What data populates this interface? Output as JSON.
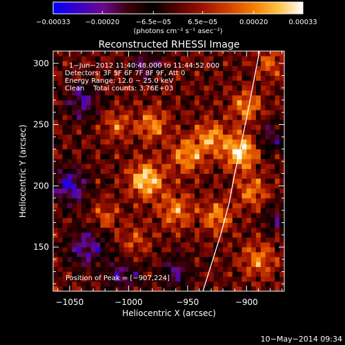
{
  "chart_data": {
    "type": "heatmap",
    "title": "Reconstructed RHESSI Image",
    "xlabel": "Heliocentric X (arcsec)",
    "ylabel": "Heliocentric Y (arcsec)",
    "xlim": [
      -1064,
      -868
    ],
    "ylim": [
      114,
      310
    ],
    "x_ticks": [
      -1050,
      -1000,
      -950,
      -900
    ],
    "x_tick_labels": [
      "−1050",
      "−1000",
      "−950",
      "−900"
    ],
    "y_ticks": [
      150,
      200,
      250,
      300
    ],
    "y_tick_labels": [
      "150",
      "200",
      "250",
      "300"
    ],
    "colorbar": {
      "range": [
        -0.00033,
        0.00033
      ],
      "ticks": [
        -0.00033,
        -0.0002,
        -6.5e-05,
        6.5e-05,
        0.0002,
        0.00033
      ],
      "tick_labels": [
        "−0.00033",
        "−0.00020",
        "−6.5e−05",
        "6.5e−05",
        "0.00020",
        "0.00033"
      ],
      "label": "(photons cm⁻² s⁻¹ asec⁻²)",
      "colors": [
        "#0000ff",
        "#3a00c8",
        "#6a0a8a",
        "#3a0008",
        "#000000",
        "#5a0000",
        "#9a1400",
        "#d24000",
        "#f47a00",
        "#ffc040",
        "#ffffff"
      ]
    },
    "annotations": {
      "time_range": "1−Jun−2012 11:40:48.000 to 11:44:52.000",
      "detectors": "Detectors: 3F 5F 6F 7F 8F 9F, Att 0",
      "energy": "Energy Range: 12.0 − 25.0 keV",
      "method": "Clean    Total counts: 3.76E+03",
      "peak": "Position of Peak = [−907,224]"
    },
    "limb": [
      [
        -937,
        114
      ],
      [
        -922,
        160
      ],
      [
        -915,
        185
      ],
      [
        -910,
        210
      ],
      [
        -900,
        255
      ],
      [
        -889,
        310
      ]
    ],
    "limb_color": "#ffffff",
    "peak": [
      -907,
      224
    ],
    "hotspots": [
      [
        -985,
        205,
        0.0003,
        10
      ],
      [
        -950,
        225,
        0.00022,
        10
      ],
      [
        -980,
        250,
        0.0002,
        9
      ],
      [
        -930,
        240,
        0.00021,
        9
      ],
      [
        -905,
        228,
        0.00031,
        10
      ],
      [
        -900,
        265,
        0.0002,
        9
      ],
      [
        -960,
        180,
        0.00019,
        10
      ],
      [
        -925,
        175,
        0.0002,
        9
      ],
      [
        -895,
        195,
        0.00018,
        9
      ],
      [
        -1010,
        250,
        0.00015,
        8
      ],
      [
        -1020,
        175,
        0.00014,
        8
      ],
      [
        -890,
        140,
        0.00018,
        10
      ],
      [
        -880,
        300,
        0.00015,
        8
      ],
      [
        -995,
        155,
        0.00012,
        9
      ]
    ],
    "coldspots": [
      [
        -1050,
        200,
        -0.00026,
        10
      ],
      [
        -1035,
        150,
        -0.00022,
        11
      ],
      [
        -1040,
        270,
        -0.0002,
        10
      ],
      [
        -1005,
        128,
        -0.00018,
        10
      ],
      [
        -985,
        300,
        -0.00016,
        9
      ],
      [
        -960,
        130,
        -0.00017,
        9
      ],
      [
        -880,
        240,
        -0.00016,
        9
      ],
      [
        -875,
        175,
        -0.00014,
        8
      ]
    ]
  },
  "footer": {
    "timestamp": "10−May−2014 09:34"
  }
}
